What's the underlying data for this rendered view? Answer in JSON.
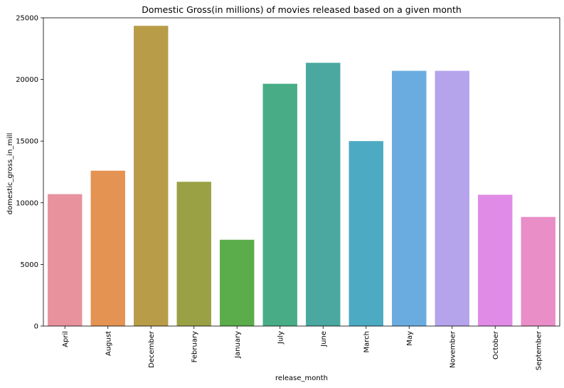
{
  "chart_data": {
    "type": "bar",
    "title": "Domestic Gross(in millions) of movies released based on a given month",
    "xlabel": "release_month",
    "ylabel": "domestic_gross_in_mill",
    "ylim": [
      0,
      25000
    ],
    "yticks": [
      0,
      5000,
      10000,
      15000,
      20000,
      25000
    ],
    "grid": false,
    "legend": "none",
    "categories": [
      "April",
      "August",
      "December",
      "February",
      "January",
      "July",
      "June",
      "March",
      "May",
      "November",
      "October",
      "September"
    ],
    "values": [
      10700,
      12600,
      24350,
      11700,
      7000,
      19650,
      21350,
      15000,
      20700,
      20700,
      10650,
      8850
    ],
    "colors": [
      "#e8929e",
      "#e49352",
      "#b89c48",
      "#99a144",
      "#5bac4b",
      "#48ad87",
      "#4aa8a0",
      "#4daac3",
      "#6aace0",
      "#b5a3eb",
      "#e08be6",
      "#e98ec7"
    ]
  }
}
